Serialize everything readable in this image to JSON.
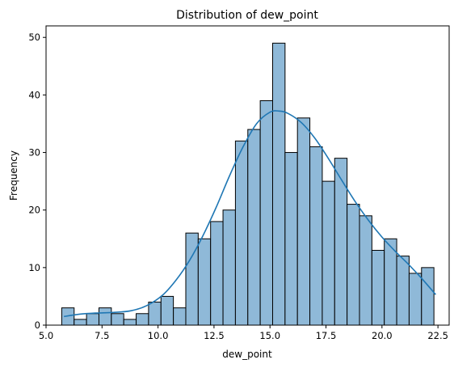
{
  "chart_data": {
    "type": "bar",
    "title": "Distribution of dew_point",
    "xlabel": "dew_point",
    "ylabel": "Frequency",
    "xlim": [
      5.0,
      23.0
    ],
    "ylim": [
      0,
      52
    ],
    "x_ticks": [
      5.0,
      7.5,
      10.0,
      12.5,
      15.0,
      17.5,
      20.0,
      22.5
    ],
    "x_tick_labels": [
      "5.0",
      "7.5",
      "10.0",
      "12.5",
      "15.0",
      "17.5",
      "20.0",
      "22.5"
    ],
    "y_ticks": [
      0,
      10,
      20,
      30,
      40,
      50
    ],
    "y_tick_labels": [
      "0",
      "10",
      "20",
      "30",
      "40",
      "50"
    ],
    "bin_start": 5.7,
    "bin_width": 0.554,
    "values": [
      3,
      1,
      2,
      3,
      2,
      1,
      2,
      4,
      5,
      3,
      16,
      15,
      18,
      20,
      32,
      34,
      39,
      49,
      30,
      36,
      31,
      25,
      29,
      21,
      19,
      13,
      15,
      12,
      9,
      10
    ],
    "kde": {
      "x": [
        5.8,
        6.5,
        7.2,
        8.0,
        8.8,
        9.5,
        10.2,
        10.8,
        11.4,
        12.0,
        12.6,
        13.2,
        13.8,
        14.4,
        15.0,
        15.4,
        15.8,
        16.4,
        17.0,
        17.6,
        18.2,
        18.8,
        19.4,
        20.0,
        20.6,
        21.2,
        21.8,
        22.4
      ],
      "y": [
        1.5,
        1.9,
        2.1,
        2.2,
        2.5,
        3.4,
        5.2,
        7.8,
        11.2,
        15.5,
        20.5,
        26.0,
        31.0,
        35.0,
        37.0,
        37.2,
        36.8,
        35.2,
        32.5,
        29.0,
        25.2,
        21.5,
        18.2,
        15.3,
        12.8,
        10.5,
        8.0,
        5.3
      ]
    },
    "bar_color": "#8fb9d8",
    "kde_color": "#1f77b4",
    "grid": false,
    "legend": "none"
  }
}
